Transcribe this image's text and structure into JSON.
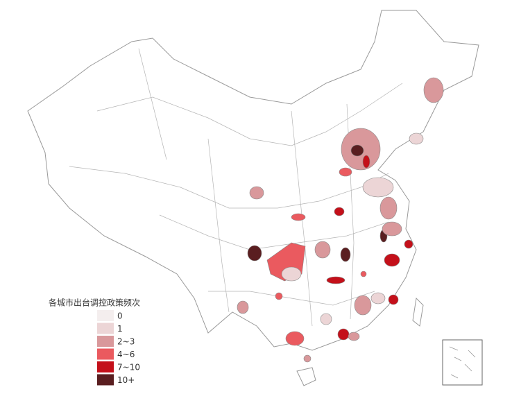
{
  "legend": {
    "title": "各城市出台调控政策频次",
    "items": [
      {
        "label": "0",
        "color": "#f4eeee"
      },
      {
        "label": "1",
        "color": "#ecd5d6"
      },
      {
        "label": "2~3",
        "color": "#d9989b"
      },
      {
        "label": "4~6",
        "color": "#ea5a5f"
      },
      {
        "label": "7~10",
        "color": "#c4101a"
      },
      {
        "label": "10+",
        "color": "#5a1e20"
      }
    ]
  }
}
